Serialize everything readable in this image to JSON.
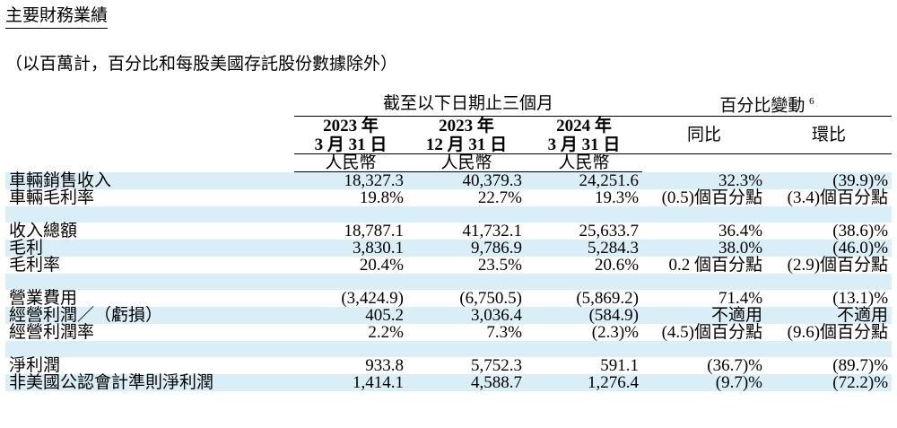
{
  "title": "主要財務業績",
  "subtitle": "（以百萬計，百分比和每股美國存託股份數據除外）",
  "table": {
    "group_left": "截至以下日期止三個月",
    "group_right": "百分比變動",
    "group_right_sup": "6",
    "periods": [
      {
        "year": "2023 年",
        "date": "3 月 31 日",
        "currency": "人民幣"
      },
      {
        "year": "2023 年",
        "date": "12 月 31 日",
        "currency": "人民幣"
      },
      {
        "year": "2024 年",
        "date": "3 月 31 日",
        "currency": "人民幣"
      }
    ],
    "change_headers": [
      "同比",
      "環比"
    ],
    "rows": [
      {
        "label": "車輛銷售收入",
        "values": [
          "18,327.3",
          "40,379.3",
          "24,251.6",
          "32.3%",
          "(39.9)%"
        ],
        "shade": true
      },
      {
        "label": "車輛毛利率",
        "values": [
          "19.8%",
          "22.7%",
          "19.3%",
          "(0.5)個百分點",
          "(3.4)個百分點"
        ],
        "shade": false
      },
      {
        "spacer": true,
        "shade": true
      },
      {
        "label": "收入總額",
        "values": [
          "18,787.1",
          "41,732.1",
          "25,633.7",
          "36.4%",
          "(38.6)%"
        ],
        "shade": false
      },
      {
        "label": "毛利",
        "values": [
          "3,830.1",
          "9,786.9",
          "5,284.3",
          "38.0%",
          "(46.0)%"
        ],
        "shade": true
      },
      {
        "label": "毛利率",
        "values": [
          "20.4%",
          "23.5%",
          "20.6%",
          "0.2 個百分點",
          "(2.9)個百分點"
        ],
        "shade": false
      },
      {
        "spacer": true,
        "shade": true
      },
      {
        "label": "營業費用",
        "values": [
          "(3,424.9)",
          "(6,750.5)",
          "(5,869.2)",
          "71.4%",
          "(13.1)%"
        ],
        "shade": false
      },
      {
        "label": "經營利潤／（虧損）",
        "values": [
          "405.2",
          "3,036.4",
          "(584.9)",
          "不適用",
          "不適用"
        ],
        "shade": true
      },
      {
        "label": "經營利潤率",
        "values": [
          "2.2%",
          "7.3%",
          "(2.3)%",
          "(4.5)個百分點",
          "(9.6)個百分點"
        ],
        "shade": false
      },
      {
        "spacer": true,
        "shade": true
      },
      {
        "label": "淨利潤",
        "values": [
          "933.8",
          "5,752.3",
          "591.1",
          "(36.7)%",
          "(89.7)%"
        ],
        "shade": false
      },
      {
        "label": "非美國公認會計準則淨利潤",
        "values": [
          "1,414.1",
          "4,588.7",
          "1,276.4",
          "(9.7)%",
          "(72.2)%"
        ],
        "shade": true
      }
    ]
  }
}
